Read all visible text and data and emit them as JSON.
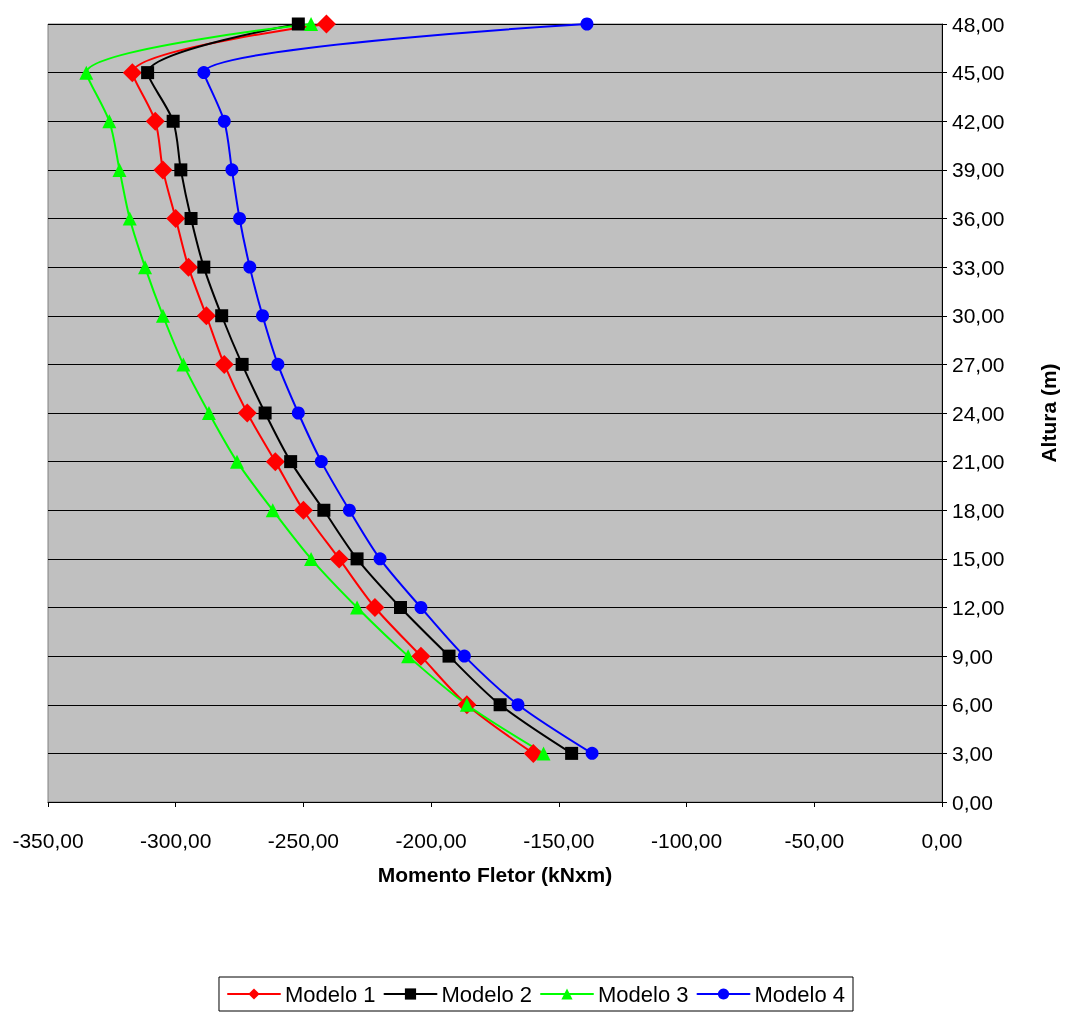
{
  "chart_data": {
    "type": "line",
    "xlabel": "Momento Fletor (kNxm)",
    "ylabel": "Altura (m)",
    "xlim": [
      -350,
      0
    ],
    "xticks": [
      {
        "value": -350,
        "label": "-350,00"
      },
      {
        "value": -300,
        "label": "-300,00"
      },
      {
        "value": -250,
        "label": "-250,00"
      },
      {
        "value": -200,
        "label": "-200,00"
      },
      {
        "value": -150,
        "label": "-150,00"
      },
      {
        "value": -100,
        "label": "-100,00"
      },
      {
        "value": -50,
        "label": "-50,00"
      },
      {
        "value": 0,
        "label": "0,00"
      }
    ],
    "ylim": [
      0,
      48
    ],
    "yticks": [
      {
        "value": 0,
        "label": "0,00"
      },
      {
        "value": 3,
        "label": "3,00"
      },
      {
        "value": 6,
        "label": "6,00"
      },
      {
        "value": 9,
        "label": "9,00"
      },
      {
        "value": 12,
        "label": "12,00"
      },
      {
        "value": 15,
        "label": "15,00"
      },
      {
        "value": 18,
        "label": "18,00"
      },
      {
        "value": 21,
        "label": "21,00"
      },
      {
        "value": 24,
        "label": "24,00"
      },
      {
        "value": 27,
        "label": "27,00"
      },
      {
        "value": 30,
        "label": "30,00"
      },
      {
        "value": 33,
        "label": "33,00"
      },
      {
        "value": 36,
        "label": "36,00"
      },
      {
        "value": 39,
        "label": "39,00"
      },
      {
        "value": 42,
        "label": "42,00"
      },
      {
        "value": 45,
        "label": "45,00"
      },
      {
        "value": 48,
        "label": "48,00"
      }
    ],
    "grid": "y",
    "legend": "bottom",
    "line_style": "solid",
    "series": [
      {
        "name": "Modelo 1",
        "color": "#ff0000",
        "marker": "diamond",
        "x": [
          -160,
          -186,
          -204,
          -222,
          -236,
          -250,
          -261,
          -272,
          -281,
          -288,
          -295,
          -300,
          -305,
          -308,
          -317,
          -241
        ],
        "values": [
          3,
          6,
          9,
          12,
          15,
          18,
          21,
          24,
          27,
          30,
          33,
          36,
          39,
          42,
          45,
          48
        ]
      },
      {
        "name": "Modelo 2",
        "color": "#000000",
        "marker": "square",
        "x": [
          -145,
          -173,
          -193,
          -212,
          -229,
          -242,
          -255,
          -265,
          -274,
          -282,
          -289,
          -294,
          -298,
          -301,
          -311,
          -252
        ],
        "values": [
          3,
          6,
          9,
          12,
          15,
          18,
          21,
          24,
          27,
          30,
          33,
          36,
          39,
          42,
          45,
          48
        ]
      },
      {
        "name": "Modelo 3",
        "color": "#00ff00",
        "marker": "triangle",
        "x": [
          -156,
          -186,
          -209,
          -229,
          -247,
          -262,
          -276,
          -287,
          -297,
          -305,
          -312,
          -318,
          -322,
          -326,
          -335,
          -247
        ],
        "values": [
          3,
          6,
          9,
          12,
          15,
          18,
          21,
          24,
          27,
          30,
          33,
          36,
          39,
          42,
          45,
          48
        ]
      },
      {
        "name": "Modelo 4",
        "color": "#0000ff",
        "marker": "circle",
        "x": [
          -137,
          -166,
          -187,
          -204,
          -220,
          -232,
          -243,
          -252,
          -260,
          -266,
          -271,
          -275,
          -278,
          -281,
          -289,
          -139
        ],
        "values": [
          3,
          6,
          9,
          12,
          15,
          18,
          21,
          24,
          27,
          30,
          33,
          36,
          39,
          42,
          45,
          48
        ]
      }
    ]
  }
}
